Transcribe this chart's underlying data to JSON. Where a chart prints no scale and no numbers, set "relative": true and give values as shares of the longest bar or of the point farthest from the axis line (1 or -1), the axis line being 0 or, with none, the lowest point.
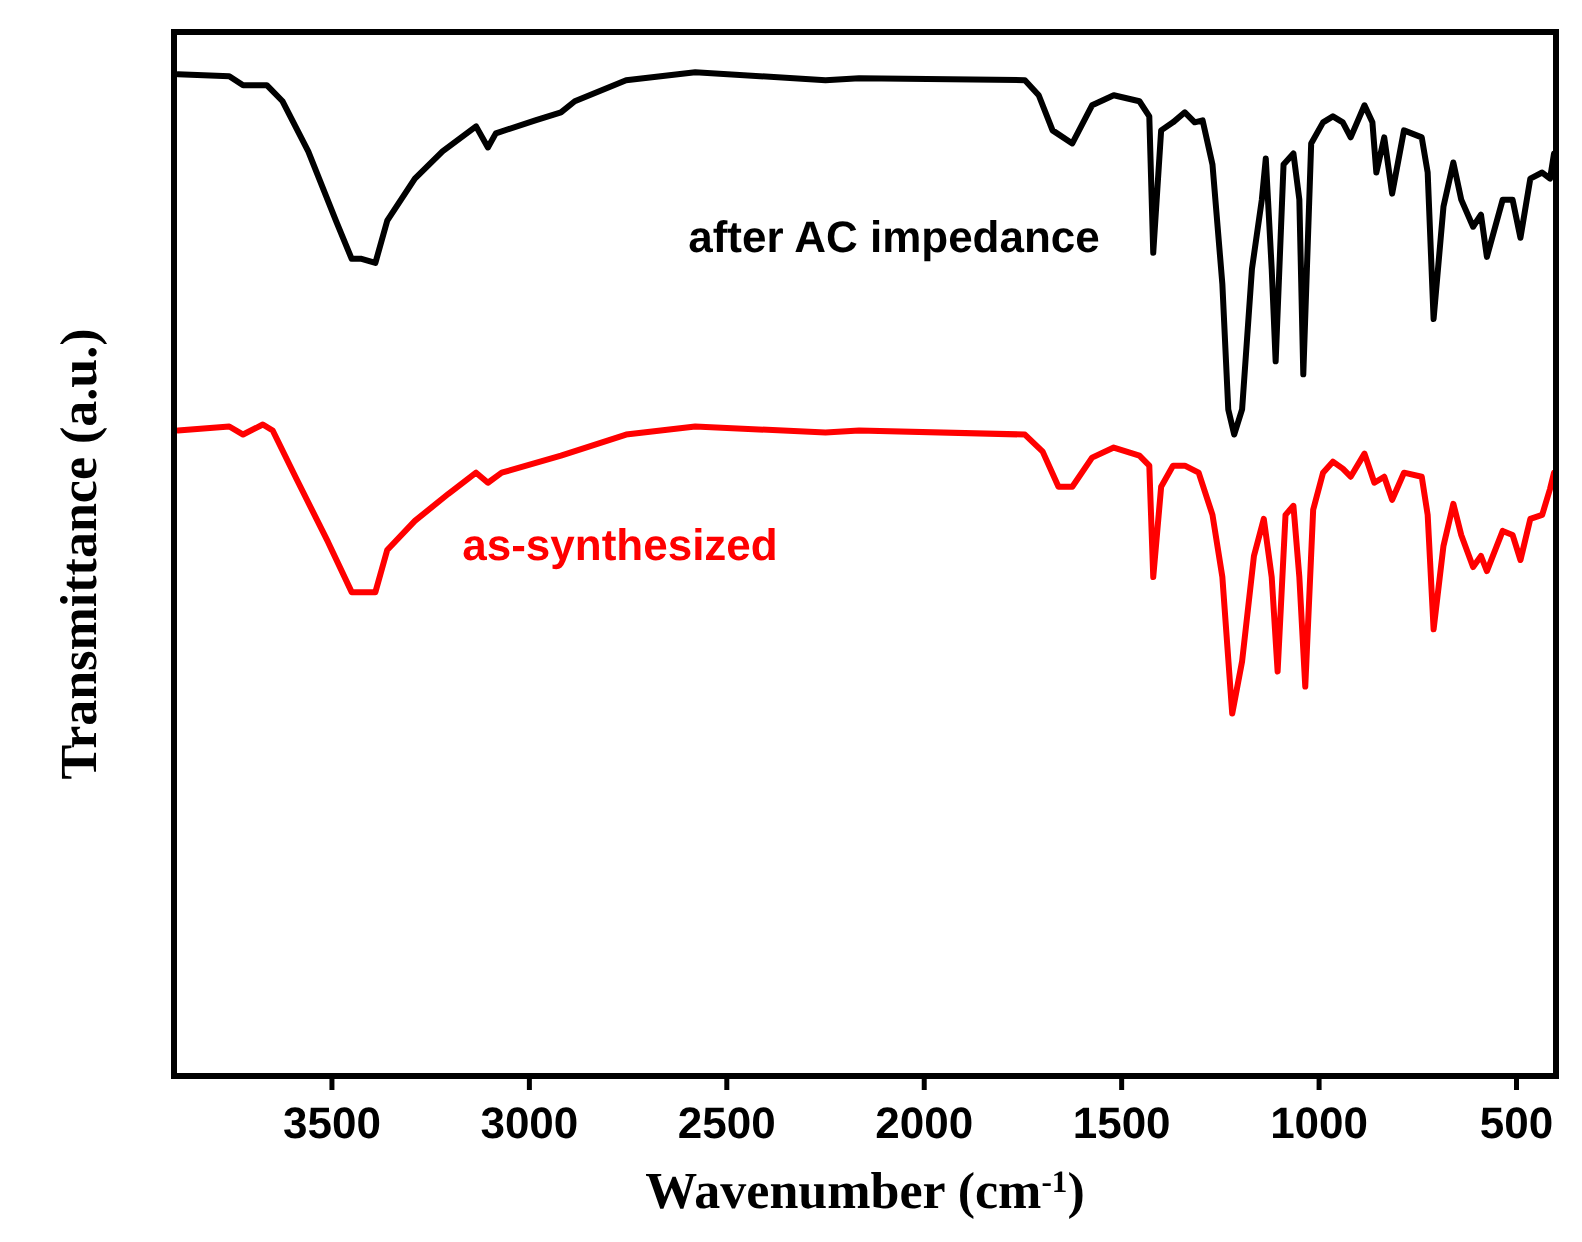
{
  "chart_data": {
    "type": "line",
    "relative": true,
    "xlabel": "Wavenumber (cm$^{-1}$)",
    "ylabel": "Transmittance (a.u.)",
    "xlim": [
      3900,
      400
    ],
    "xticks": [
      3500,
      3000,
      2500,
      2000,
      1500,
      1000,
      500
    ],
    "grid": false,
    "marker": "none",
    "line_style": "solid",
    "series": [
      {
        "name": "after AC impedance",
        "color": "#000000",
        "x": [
          3890,
          3760,
          3725,
          3665,
          3625,
          3560,
          3490,
          3450,
          3425,
          3390,
          3360,
          3290,
          3220,
          3135,
          3105,
          3085,
          2985,
          2920,
          2885,
          2755,
          2580,
          2250,
          2165,
          1745,
          1710,
          1675,
          1625,
          1575,
          1520,
          1455,
          1430,
          1420,
          1400,
          1370,
          1340,
          1315,
          1295,
          1270,
          1245,
          1230,
          1215,
          1195,
          1170,
          1145,
          1135,
          1120,
          1110,
          1090,
          1065,
          1050,
          1040,
          1020,
          990,
          965,
          940,
          920,
          885,
          865,
          855,
          835,
          815,
          785,
          740,
          725,
          710,
          685,
          660,
          640,
          610,
          590,
          575,
          535,
          510,
          490,
          465,
          435,
          415,
          405
        ],
        "values": [
          0.998,
          0.996,
          0.987,
          0.987,
          0.971,
          0.921,
          0.852,
          0.814,
          0.814,
          0.81,
          0.852,
          0.894,
          0.921,
          0.946,
          0.925,
          0.939,
          0.952,
          0.96,
          0.971,
          0.992,
          1,
          0.992,
          0.994,
          0.992,
          0.977,
          0.942,
          0.929,
          0.967,
          0.977,
          0.971,
          0.956,
          0.82,
          0.942,
          0.95,
          0.96,
          0.95,
          0.952,
          0.908,
          0.789,
          0.664,
          0.639,
          0.664,
          0.804,
          0.873,
          0.914,
          0.804,
          0.712,
          0.908,
          0.919,
          0.873,
          0.699,
          0.929,
          0.95,
          0.956,
          0.95,
          0.935,
          0.967,
          0.95,
          0.9,
          0.935,
          0.879,
          0.942,
          0.935,
          0.9,
          0.754,
          0.866,
          0.91,
          0.873,
          0.846,
          0.858,
          0.816,
          0.873,
          0.873,
          0.835,
          0.894,
          0.9,
          0.894,
          0.919
        ]
      },
      {
        "name": "as-synthesized",
        "color": "#ff0000",
        "x": [
          3890,
          3760,
          3725,
          3675,
          3650,
          3590,
          3510,
          3450,
          3390,
          3360,
          3290,
          3205,
          3135,
          3105,
          3070,
          2920,
          2755,
          2580,
          2250,
          2165,
          1745,
          1700,
          1660,
          1625,
          1575,
          1520,
          1455,
          1430,
          1420,
          1400,
          1370,
          1340,
          1305,
          1270,
          1245,
          1220,
          1195,
          1165,
          1140,
          1120,
          1105,
          1085,
          1065,
          1050,
          1035,
          1015,
          990,
          965,
          940,
          920,
          885,
          860,
          835,
          815,
          785,
          740,
          725,
          710,
          685,
          660,
          640,
          610,
          590,
          575,
          535,
          510,
          490,
          465,
          435,
          415,
          405
        ],
        "values": [
          0.643,
          0.647,
          0.639,
          0.649,
          0.643,
          0.595,
          0.532,
          0.482,
          0.482,
          0.524,
          0.553,
          0.58,
          0.601,
          0.591,
          0.601,
          0.618,
          0.639,
          0.647,
          0.641,
          0.643,
          0.639,
          0.622,
          0.587,
          0.587,
          0.616,
          0.626,
          0.618,
          0.608,
          0.497,
          0.587,
          0.608,
          0.608,
          0.601,
          0.559,
          0.497,
          0.361,
          0.413,
          0.518,
          0.555,
          0.497,
          0.403,
          0.559,
          0.568,
          0.497,
          0.388,
          0.564,
          0.601,
          0.612,
          0.605,
          0.597,
          0.62,
          0.591,
          0.597,
          0.574,
          0.601,
          0.597,
          0.559,
          0.445,
          0.528,
          0.57,
          0.539,
          0.507,
          0.518,
          0.503,
          0.543,
          0.539,
          0.514,
          0.555,
          0.559,
          0.585,
          0.601
        ]
      }
    ]
  }
}
